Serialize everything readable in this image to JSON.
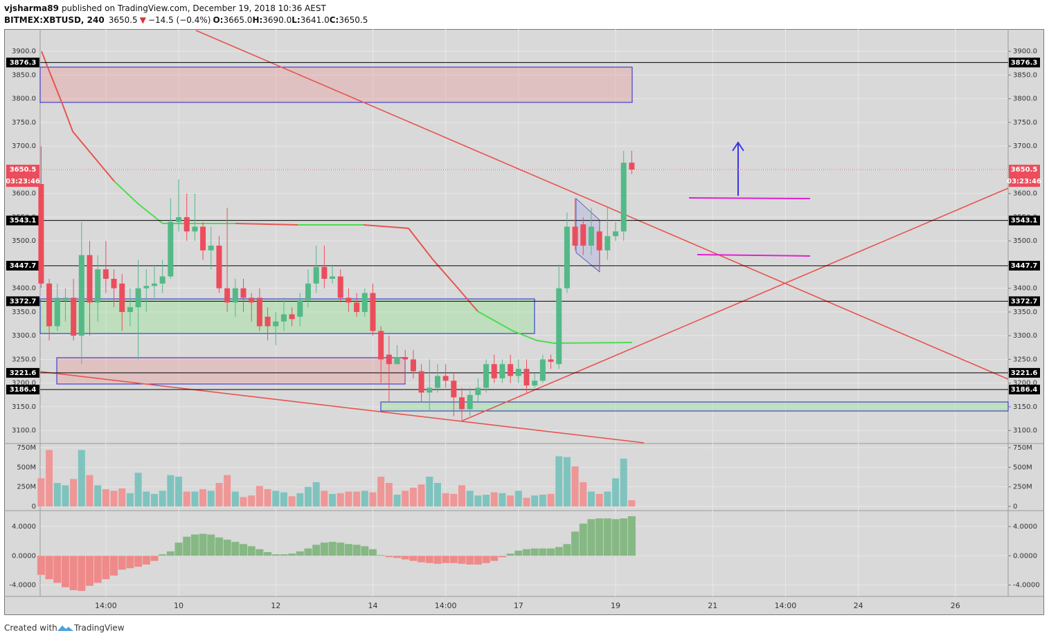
{
  "header": {
    "author": "vjsharma89",
    "published": "published on TradingView.com, December 19, 2018 10:36 AEST",
    "symbol": "BITMEX:XBTUSD, 240",
    "last": "3650.5",
    "arrow": "▼",
    "change": "−14.5 (−0.4%)",
    "open_label": "O:",
    "open": "3665.0",
    "high_label": "H:",
    "high": "3690.0",
    "low_label": "L:",
    "low": "3641.0",
    "close_label": "C:",
    "close": "3650.5"
  },
  "footer": {
    "created": "Created with",
    "brand": "TradingView"
  },
  "chart_data": {
    "type": "candlestick",
    "categories": [
      null,
      null,
      null,
      null,
      null,
      null,
      null,
      null,
      "14:00",
      null,
      null,
      null,
      null,
      null,
      null,
      null,
      null,
      "10",
      null,
      null,
      null,
      null,
      null,
      null,
      null,
      null,
      null,
      null,
      null,
      "12",
      null,
      null,
      null,
      null,
      null,
      null,
      null,
      null,
      null,
      null,
      null,
      "14",
      null,
      null,
      null,
      null,
      null,
      null,
      null,
      null,
      "14:00",
      null,
      null,
      null,
      null,
      null,
      null,
      null,
      null,
      "17",
      null,
      null,
      null,
      null,
      null,
      null,
      null,
      null,
      null,
      null,
      null,
      "19",
      null,
      null,
      null,
      null,
      null,
      null,
      null,
      null,
      null,
      null,
      null,
      "21",
      null,
      null,
      null,
      null,
      null,
      null,
      null,
      null,
      "14:00",
      null,
      null,
      null,
      null,
      null,
      null,
      null,
      null,
      "24",
      null,
      null,
      null,
      null,
      null,
      null,
      null,
      null,
      null,
      null,
      null,
      "26",
      null,
      null,
      null,
      null,
      null
    ],
    "open": [
      3620,
      3410,
      3320,
      3375,
      3380,
      3300,
      3470,
      3370,
      3440,
      3420,
      3410,
      3350,
      3360,
      3400,
      3405,
      3410,
      3425,
      3540,
      3550,
      3520,
      3530,
      3480,
      3490,
      3400,
      3370,
      3400,
      3380,
      3380,
      3340,
      3320,
      3330,
      3345,
      3340,
      3375,
      3410,
      3445,
      3420,
      3425,
      3380,
      3370,
      3350,
      3390,
      3310,
      3260,
      3240,
      3255,
      3250,
      3225,
      3180,
      3190,
      3215,
      3205,
      3170,
      3145,
      3175,
      3190,
      3240,
      3210,
      3240,
      3215,
      3230,
      3195,
      3205,
      3250,
      3240,
      3400,
      3530,
      3535,
      3490,
      3520,
      3480,
      3510,
      3520,
      3665,
      null,
      null,
      null,
      null,
      null,
      null,
      null,
      null,
      null,
      null,
      null,
      null,
      null,
      null,
      null,
      null,
      null,
      null,
      null,
      null,
      null,
      null,
      null,
      null,
      null,
      null,
      null,
      null,
      null,
      null,
      null,
      null,
      null,
      null,
      null,
      null,
      null,
      null,
      null,
      null,
      null,
      null,
      null,
      null,
      null
    ],
    "high": [
      3700,
      3420,
      3410,
      3400,
      3420,
      3540,
      3500,
      3470,
      3500,
      3440,
      3430,
      3400,
      3460,
      3440,
      3450,
      3460,
      3590,
      3630,
      3600,
      3600,
      3540,
      3530,
      3510,
      3570,
      3420,
      3420,
      3390,
      3400,
      3360,
      3350,
      3380,
      3360,
      3390,
      3440,
      3490,
      3490,
      3450,
      3440,
      3400,
      3390,
      3400,
      3410,
      3320,
      3300,
      3280,
      3270,
      3270,
      3240,
      3250,
      3240,
      3240,
      3220,
      3190,
      3190,
      3210,
      3250,
      3260,
      3250,
      3260,
      3250,
      3250,
      3220,
      3260,
      3260,
      3450,
      3560,
      3590,
      3550,
      3570,
      3530,
      3570,
      3540,
      3690,
      3690,
      null,
      null,
      null,
      null,
      null,
      null,
      null,
      null,
      null,
      null,
      null,
      null,
      null,
      null,
      null,
      null,
      null,
      null,
      null,
      null,
      null,
      null,
      null,
      null,
      null,
      null,
      null,
      null,
      null,
      null,
      null,
      null,
      null,
      null,
      null,
      null,
      null,
      null,
      null,
      null,
      null,
      null,
      null,
      null,
      null
    ],
    "low": [
      3400,
      3290,
      3310,
      3330,
      3290,
      3240,
      3300,
      3330,
      3390,
      3360,
      3310,
      3320,
      3250,
      3350,
      3380,
      3390,
      3420,
      3520,
      3500,
      3500,
      3460,
      3440,
      3390,
      3350,
      3340,
      3350,
      3330,
      3310,
      3290,
      3280,
      3310,
      3320,
      3320,
      3360,
      3390,
      3400,
      3410,
      3370,
      3350,
      3340,
      3340,
      3300,
      3200,
      3160,
      3240,
      3200,
      3210,
      3160,
      3140,
      3180,
      3190,
      3130,
      3120,
      3130,
      3160,
      3180,
      3200,
      3200,
      3200,
      3200,
      3180,
      3190,
      3200,
      3230,
      3230,
      3390,
      3480,
      3470,
      3470,
      3440,
      3460,
      3500,
      3500,
      3641,
      null,
      null,
      null,
      null,
      null,
      null,
      null,
      null,
      null,
      null,
      null,
      null,
      null,
      null,
      null,
      null,
      null,
      null,
      null,
      null,
      null,
      null,
      null,
      null,
      null,
      null,
      null,
      null,
      null,
      null,
      null,
      null,
      null,
      null,
      null,
      null,
      null,
      null,
      null,
      null,
      null,
      null,
      null,
      null,
      null
    ],
    "close": [
      3410,
      3320,
      3380,
      3380,
      3300,
      3470,
      3370,
      3440,
      3420,
      3400,
      3350,
      3360,
      3400,
      3405,
      3410,
      3425,
      3540,
      3550,
      3520,
      3530,
      3480,
      3490,
      3400,
      3370,
      3400,
      3380,
      3370,
      3320,
      3320,
      3330,
      3345,
      3335,
      3375,
      3410,
      3445,
      3420,
      3425,
      3380,
      3370,
      3350,
      3390,
      3310,
      3250,
      3240,
      3255,
      3250,
      3225,
      3180,
      3190,
      3215,
      3205,
      3170,
      3145,
      3175,
      3190,
      3240,
      3210,
      3240,
      3215,
      3230,
      3195,
      3205,
      3250,
      3245,
      3400,
      3530,
      3490,
      3490,
      3530,
      3480,
      3510,
      3520,
      3665,
      3650.5,
      null,
      null,
      null,
      null,
      null,
      null,
      null,
      null,
      null,
      null,
      null,
      null,
      null,
      null,
      null,
      null,
      null,
      null,
      null,
      null,
      null,
      null,
      null,
      null,
      null,
      null,
      null,
      null,
      null,
      null,
      null,
      null,
      null,
      null,
      null,
      null,
      null,
      null,
      null,
      null,
      null,
      null,
      null,
      null,
      null
    ],
    "volume": [
      360,
      720,
      300,
      270,
      350,
      720,
      400,
      270,
      220,
      200,
      230,
      170,
      430,
      190,
      160,
      200,
      400,
      380,
      190,
      190,
      220,
      200,
      300,
      400,
      190,
      120,
      140,
      260,
      220,
      200,
      180,
      130,
      170,
      250,
      310,
      200,
      160,
      170,
      190,
      190,
      200,
      180,
      380,
      300,
      150,
      200,
      240,
      280,
      380,
      300,
      170,
      160,
      270,
      200,
      140,
      150,
      180,
      170,
      140,
      200,
      110,
      140,
      150,
      160,
      640,
      630,
      510,
      310,
      190,
      160,
      190,
      360,
      610,
      80,
      null,
      null,
      null,
      null,
      null,
      null,
      null,
      null,
      null,
      null,
      null,
      null,
      null,
      null,
      null,
      null,
      null,
      null,
      null,
      null,
      null,
      null,
      null,
      null,
      null,
      null,
      null,
      null,
      null,
      null,
      null,
      null,
      null,
      null,
      null,
      null,
      null,
      null,
      null,
      null,
      null,
      null,
      null,
      null,
      null
    ],
    "oscillator": [
      -2.6,
      -3.2,
      -3.7,
      -4.3,
      -4.7,
      -4.8,
      -4.1,
      -3.7,
      -3.2,
      -2.7,
      -1.9,
      -1.7,
      -1.5,
      -1.2,
      -0.7,
      0.2,
      0.6,
      1.8,
      2.6,
      2.9,
      3.0,
      2.9,
      2.5,
      2.2,
      1.9,
      1.6,
      1.3,
      0.9,
      0.5,
      0.2,
      0.2,
      0.3,
      0.6,
      1.0,
      1.5,
      1.8,
      1.9,
      1.8,
      1.6,
      1.5,
      1.3,
      0.9,
      0.1,
      -0.2,
      -0.3,
      -0.5,
      -0.7,
      -0.9,
      -1.0,
      -1.1,
      -1.0,
      -1.0,
      -1.1,
      -1.2,
      -1.2,
      -1.0,
      -0.7,
      -0.2,
      0.3,
      0.7,
      0.9,
      1.0,
      1.0,
      1.0,
      1.2,
      1.6,
      3.3,
      4.4,
      5.0,
      5.1,
      5.1,
      5.0,
      5.1,
      5.4,
      null,
      null,
      null,
      null,
      null,
      null,
      null,
      null,
      null,
      null,
      null,
      null,
      null,
      null,
      null,
      null,
      null,
      null,
      null,
      null,
      null,
      null,
      null,
      null,
      null,
      null,
      null,
      null,
      null,
      null,
      null,
      null,
      null,
      null,
      null,
      null,
      null,
      null,
      null,
      null,
      null,
      null,
      null,
      null,
      null
    ],
    "ylim": [
      3074,
      3944
    ],
    "yticks": [
      {
        "value": 3100,
        "label": "3100.0"
      },
      {
        "value": 3150,
        "label": "3150.0"
      },
      {
        "value": 3200,
        "label": "3200.0"
      },
      {
        "value": 3250,
        "label": "3250.0"
      },
      {
        "value": 3300,
        "label": "3300.0"
      },
      {
        "value": 3350,
        "label": "3350.0"
      },
      {
        "value": 3400,
        "label": "3400.0"
      },
      {
        "value": 3450,
        "label": "3450.0"
      },
      {
        "value": 3500,
        "label": "3500.0"
      },
      {
        "value": 3550,
        "label": "3550.0"
      },
      {
        "value": 3600,
        "label": "3600.0"
      },
      {
        "value": 3650,
        "label": "3650.0"
      },
      {
        "value": 3700,
        "label": "3700.0"
      },
      {
        "value": 3750,
        "label": "3750.0"
      },
      {
        "value": 3800,
        "label": "3800.0"
      },
      {
        "value": 3850,
        "label": "3850.0"
      },
      {
        "value": 3900,
        "label": "3900.0"
      }
    ],
    "volume_ylim": [
      -44,
      794
    ],
    "volume_ticks": [
      {
        "value": 750,
        "label": "750M"
      },
      {
        "value": 500,
        "label": "500M"
      },
      {
        "value": 250,
        "label": "250M"
      },
      0
    ],
    "osc_ylim": [
      -5.55,
      6.07
    ],
    "osc_ticks": [
      {
        "value": 4,
        "label": "4.0000"
      },
      {
        "value": 0,
        "label": "0.0000"
      },
      {
        "value": -4,
        "label": "-4.0000"
      }
    ],
    "levels": [
      3876.3,
      3543.1,
      3447.7,
      3372.7,
      3221.6,
      3186.4
    ],
    "last_price": 3650.5,
    "countdown": "03:23:46",
    "up_color": "#53b987",
    "down_color": "#eb4d5c",
    "volume_up_color": "#7fc3be",
    "volume_down_color": "#ef9696",
    "osc_up_color": "#86b884",
    "osc_down_color": "#ef8a8a",
    "grid": true
  }
}
